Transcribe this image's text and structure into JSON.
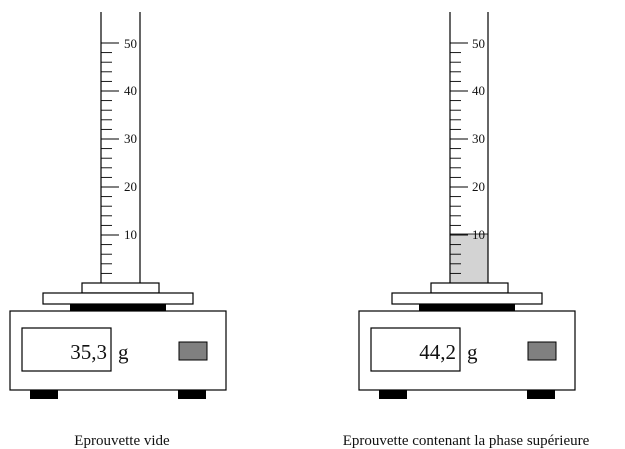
{
  "setups": [
    {
      "id": "empty",
      "display_value": "35,3",
      "unit": "g",
      "caption": "Eprouvette vide",
      "liquid_level_ml": 0
    },
    {
      "id": "upper-phase",
      "display_value": "44,2",
      "unit": "g",
      "caption": "Eprouvette contenant la phase supérieure",
      "liquid_level_ml": 10
    }
  ],
  "cylinder": {
    "scale_min": 0,
    "scale_max": 50,
    "minor_step": 2,
    "major_labels": [
      "10",
      "20",
      "30",
      "40",
      "50"
    ]
  },
  "colors": {
    "stroke": "#000000",
    "liquid": "#d3d3d3",
    "button": "#808080",
    "feet": "#000000"
  }
}
